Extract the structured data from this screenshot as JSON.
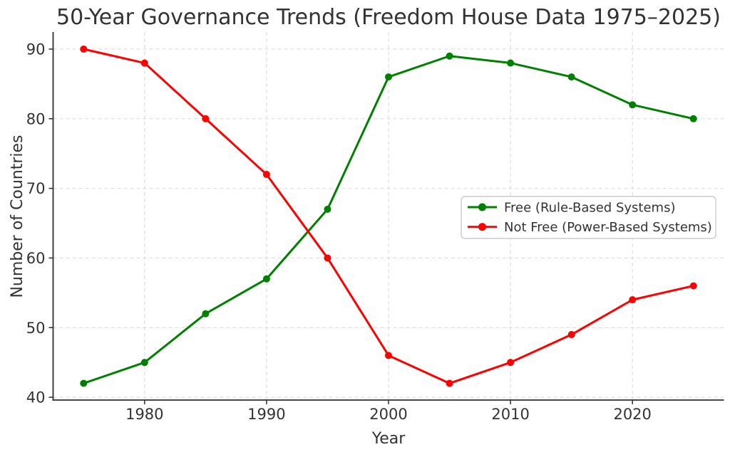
{
  "chart_data": {
    "type": "line",
    "title": "50-Year Governance Trends (Freedom House Data 1975–2025)",
    "xlabel": "Year",
    "ylabel": "Number of Countries",
    "x": [
      1975,
      1980,
      1985,
      1990,
      1995,
      2000,
      2005,
      2010,
      2015,
      2020,
      2025
    ],
    "series": [
      {
        "name": "Free (Rule-Based Systems)",
        "color": "#008000",
        "values": [
          42,
          45,
          52,
          57,
          67,
          86,
          89,
          88,
          86,
          82,
          80
        ]
      },
      {
        "name": "Not Free (Power-Based Systems)",
        "color": "#ff0000",
        "values": [
          90,
          88,
          80,
          72,
          60,
          46,
          42,
          45,
          49,
          54,
          56
        ]
      }
    ],
    "xticks": [
      1980,
      1990,
      2000,
      2010,
      2020
    ],
    "yticks": [
      40,
      50,
      60,
      70,
      80,
      90
    ],
    "xlim": [
      1972.5,
      2027.5
    ],
    "ylim": [
      39.6,
      92.45
    ],
    "grid": true,
    "grid_style": "dashed",
    "legend_position": "center right",
    "marker": "circle",
    "colors": {
      "grid": "#dcdcdc",
      "axis": "#2e2e2e",
      "text": "#333333",
      "legend_border": "#cccccc",
      "background": "#ffffff"
    }
  }
}
